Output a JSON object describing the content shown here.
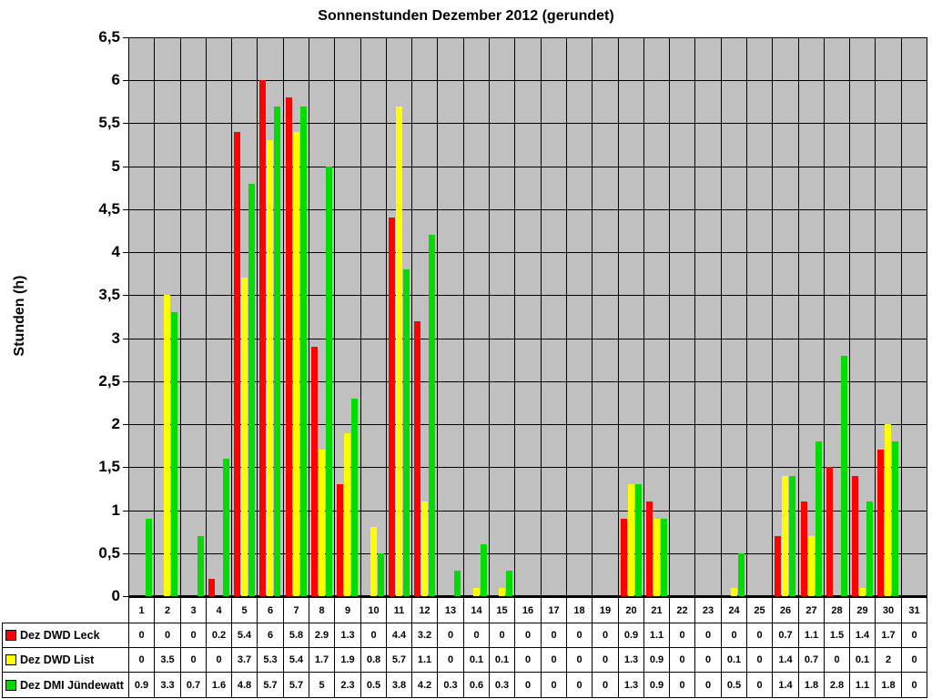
{
  "chart_data": {
    "type": "bar",
    "title": "Sonnenstunden Dezember 2012 (gerundet)",
    "ylabel": "Stunden (h)",
    "ylim": [
      0,
      6.5
    ],
    "ytick_step": 0.5,
    "grid": true,
    "plot_bg": "#C0C0C0",
    "legend_position": "data-table-left",
    "categories": [
      1,
      2,
      3,
      4,
      5,
      6,
      7,
      8,
      9,
      10,
      11,
      12,
      13,
      14,
      15,
      16,
      17,
      18,
      19,
      20,
      21,
      22,
      23,
      24,
      25,
      26,
      27,
      28,
      29,
      30,
      31
    ],
    "series": [
      {
        "name": "Dez DWD Leck",
        "color": "#FF0000",
        "values": [
          0,
          0,
          0,
          0.2,
          5.4,
          6,
          5.8,
          2.9,
          1.3,
          0,
          4.4,
          3.2,
          0,
          0,
          0,
          0,
          0,
          0,
          0,
          0.9,
          1.1,
          0,
          0,
          0,
          0,
          0.7,
          1.1,
          1.5,
          1.4,
          1.7,
          0
        ]
      },
      {
        "name": "Dez DWD List",
        "color": "#FFFF00",
        "values": [
          0,
          3.5,
          0,
          0,
          3.7,
          5.3,
          5.4,
          1.7,
          1.9,
          0.8,
          5.7,
          1.1,
          0,
          0.1,
          0.1,
          0,
          0,
          0,
          0,
          1.3,
          0.9,
          0,
          0,
          0.1,
          0,
          1.4,
          0.7,
          0,
          0.1,
          2,
          0
        ]
      },
      {
        "name": "Dez DMI Jündewatt",
        "color": "#00DC00",
        "values": [
          0.9,
          3.3,
          0.7,
          1.6,
          4.8,
          5.7,
          5.7,
          5,
          2.3,
          0.5,
          3.8,
          4.2,
          0.3,
          0.6,
          0.3,
          0,
          0,
          0,
          0,
          1.3,
          0.9,
          0,
          0,
          0.5,
          0,
          1.4,
          1.8,
          2.8,
          1.1,
          1.8,
          0
        ]
      }
    ]
  },
  "y_axis": {
    "label": "Stunden (h)",
    "tick_labels": [
      "6,5",
      "6",
      "5,5",
      "5",
      "4,5",
      "4",
      "3,5",
      "3",
      "2,5",
      "2",
      "1,5",
      "1",
      "0,5",
      "0"
    ]
  }
}
